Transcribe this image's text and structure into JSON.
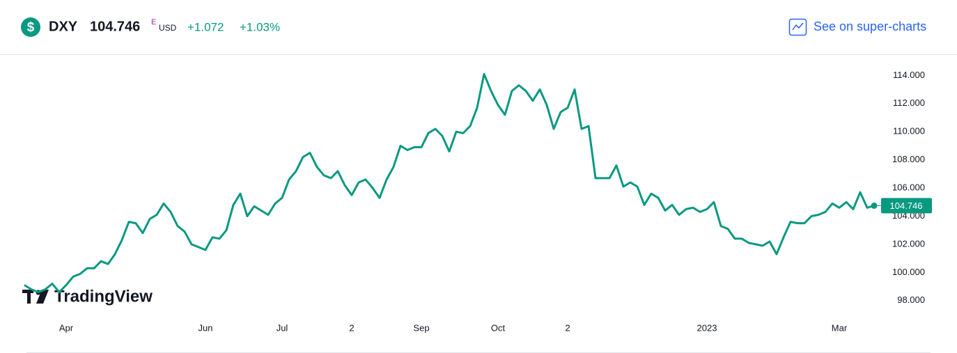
{
  "header": {
    "symbol": "DXY",
    "price": "104.746",
    "exchange_flag": "E",
    "currency": "USD",
    "change": "+1.072",
    "change_percent": "+1.03%",
    "link": "See on super-charts"
  },
  "watermark": "TradingView",
  "chart_data": {
    "type": "line",
    "color": "#089981",
    "categories": [
      null,
      null,
      null,
      null,
      null,
      null,
      "Apr",
      null,
      null,
      null,
      null,
      null,
      null,
      null,
      null,
      null,
      null,
      null,
      null,
      null,
      null,
      null,
      null,
      null,
      null,
      null,
      "Jun",
      null,
      null,
      null,
      null,
      null,
      null,
      null,
      null,
      null,
      null,
      "Jul",
      null,
      null,
      null,
      null,
      null,
      null,
      null,
      null,
      null,
      "2",
      null,
      null,
      null,
      null,
      null,
      null,
      null,
      null,
      null,
      "Sep",
      null,
      null,
      null,
      null,
      null,
      null,
      null,
      null,
      null,
      null,
      "Oct",
      null,
      null,
      null,
      null,
      null,
      null,
      null,
      null,
      null,
      "2",
      null,
      null,
      null,
      null,
      null,
      null,
      null,
      null,
      null,
      null,
      null,
      null,
      null,
      null,
      null,
      null,
      null,
      null,
      null,
      "2023",
      null,
      null,
      null,
      null,
      null,
      null,
      null,
      null,
      null,
      null,
      null,
      null,
      null,
      null,
      null,
      null,
      null,
      null,
      "Mar",
      null,
      null,
      null,
      null,
      null
    ],
    "values": [
      99.1,
      98.8,
      98.6,
      98.8,
      99.2,
      98.6,
      99.1,
      99.7,
      99.9,
      100.3,
      100.3,
      100.8,
      100.6,
      101.3,
      102.3,
      103.6,
      103.5,
      102.8,
      103.8,
      104.1,
      104.9,
      104.3,
      103.3,
      102.9,
      102.0,
      101.8,
      101.6,
      102.5,
      102.4,
      103.0,
      104.8,
      105.6,
      104.0,
      104.7,
      104.4,
      104.1,
      104.9,
      105.3,
      106.6,
      107.2,
      108.2,
      108.5,
      107.5,
      106.9,
      106.7,
      107.2,
      106.2,
      105.5,
      106.4,
      106.6,
      106.0,
      105.3,
      106.6,
      107.5,
      109.0,
      108.7,
      108.9,
      108.9,
      109.9,
      110.2,
      109.7,
      108.6,
      110.0,
      109.9,
      110.4,
      111.7,
      114.1,
      112.9,
      111.9,
      111.2,
      112.9,
      113.3,
      112.9,
      112.2,
      113.0,
      111.9,
      110.2,
      111.4,
      111.7,
      113.0,
      110.2,
      110.4,
      106.7,
      106.7,
      106.7,
      107.6,
      106.1,
      106.4,
      106.1,
      104.8,
      105.6,
      105.3,
      104.4,
      104.8,
      104.1,
      104.5,
      104.6,
      104.3,
      104.5,
      105.0,
      103.3,
      103.1,
      102.4,
      102.4,
      102.1,
      102.0,
      101.9,
      102.2,
      101.3,
      102.5,
      103.6,
      103.5,
      103.5,
      104.0,
      104.1,
      104.3,
      104.9,
      104.6,
      105.0,
      104.5,
      105.7,
      104.6,
      104.746
    ],
    "last_label": "104.746",
    "ylim": [
      96.9,
      115.5
    ],
    "yticks": [
      {
        "value": 98,
        "label": "98.000"
      },
      {
        "value": 100,
        "label": "100.000"
      },
      {
        "value": 102,
        "label": "102.000"
      },
      {
        "value": 104,
        "label": "104.000"
      },
      {
        "value": 106,
        "label": "106.000"
      },
      {
        "value": 108,
        "label": "108.000"
      },
      {
        "value": 110,
        "label": "110.000"
      },
      {
        "value": 112,
        "label": "112.000"
      },
      {
        "value": 114,
        "label": "114.000"
      }
    ],
    "grid": false
  }
}
